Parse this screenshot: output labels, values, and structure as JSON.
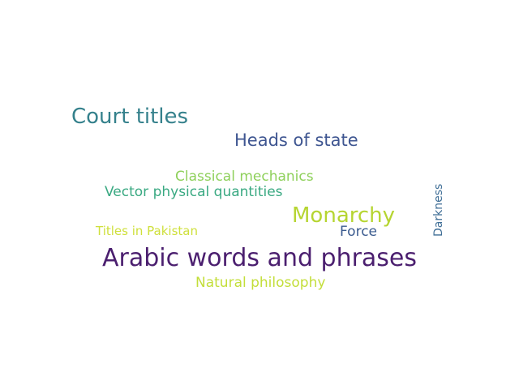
{
  "words": [
    {
      "id": "arabic",
      "text": "Arabic words and phrases",
      "color": "#4b1f6f",
      "orientation": "horizontal"
    },
    {
      "id": "court",
      "text": "Court titles",
      "color": "#35818c",
      "orientation": "horizontal"
    },
    {
      "id": "heads",
      "text": "Heads of state",
      "color": "#3f5691",
      "orientation": "horizontal"
    },
    {
      "id": "monarchy",
      "text": "Monarchy",
      "color": "#b6d532",
      "orientation": "horizontal"
    },
    {
      "id": "classic",
      "text": "Classical mechanics",
      "color": "#8ed05a",
      "orientation": "horizontal"
    },
    {
      "id": "vector",
      "text": "Vector physical quantities",
      "color": "#3aa982",
      "orientation": "horizontal"
    },
    {
      "id": "natural",
      "text": "Natural philosophy",
      "color": "#c3de3a",
      "orientation": "horizontal"
    },
    {
      "id": "titles",
      "text": "Titles in Pakistan",
      "color": "#cfe03c",
      "orientation": "horizontal"
    },
    {
      "id": "force",
      "text": "Force",
      "color": "#3b5b8f",
      "orientation": "horizontal"
    },
    {
      "id": "dark",
      "text": "Darkness",
      "color": "#3f6e96",
      "orientation": "vertical"
    }
  ]
}
